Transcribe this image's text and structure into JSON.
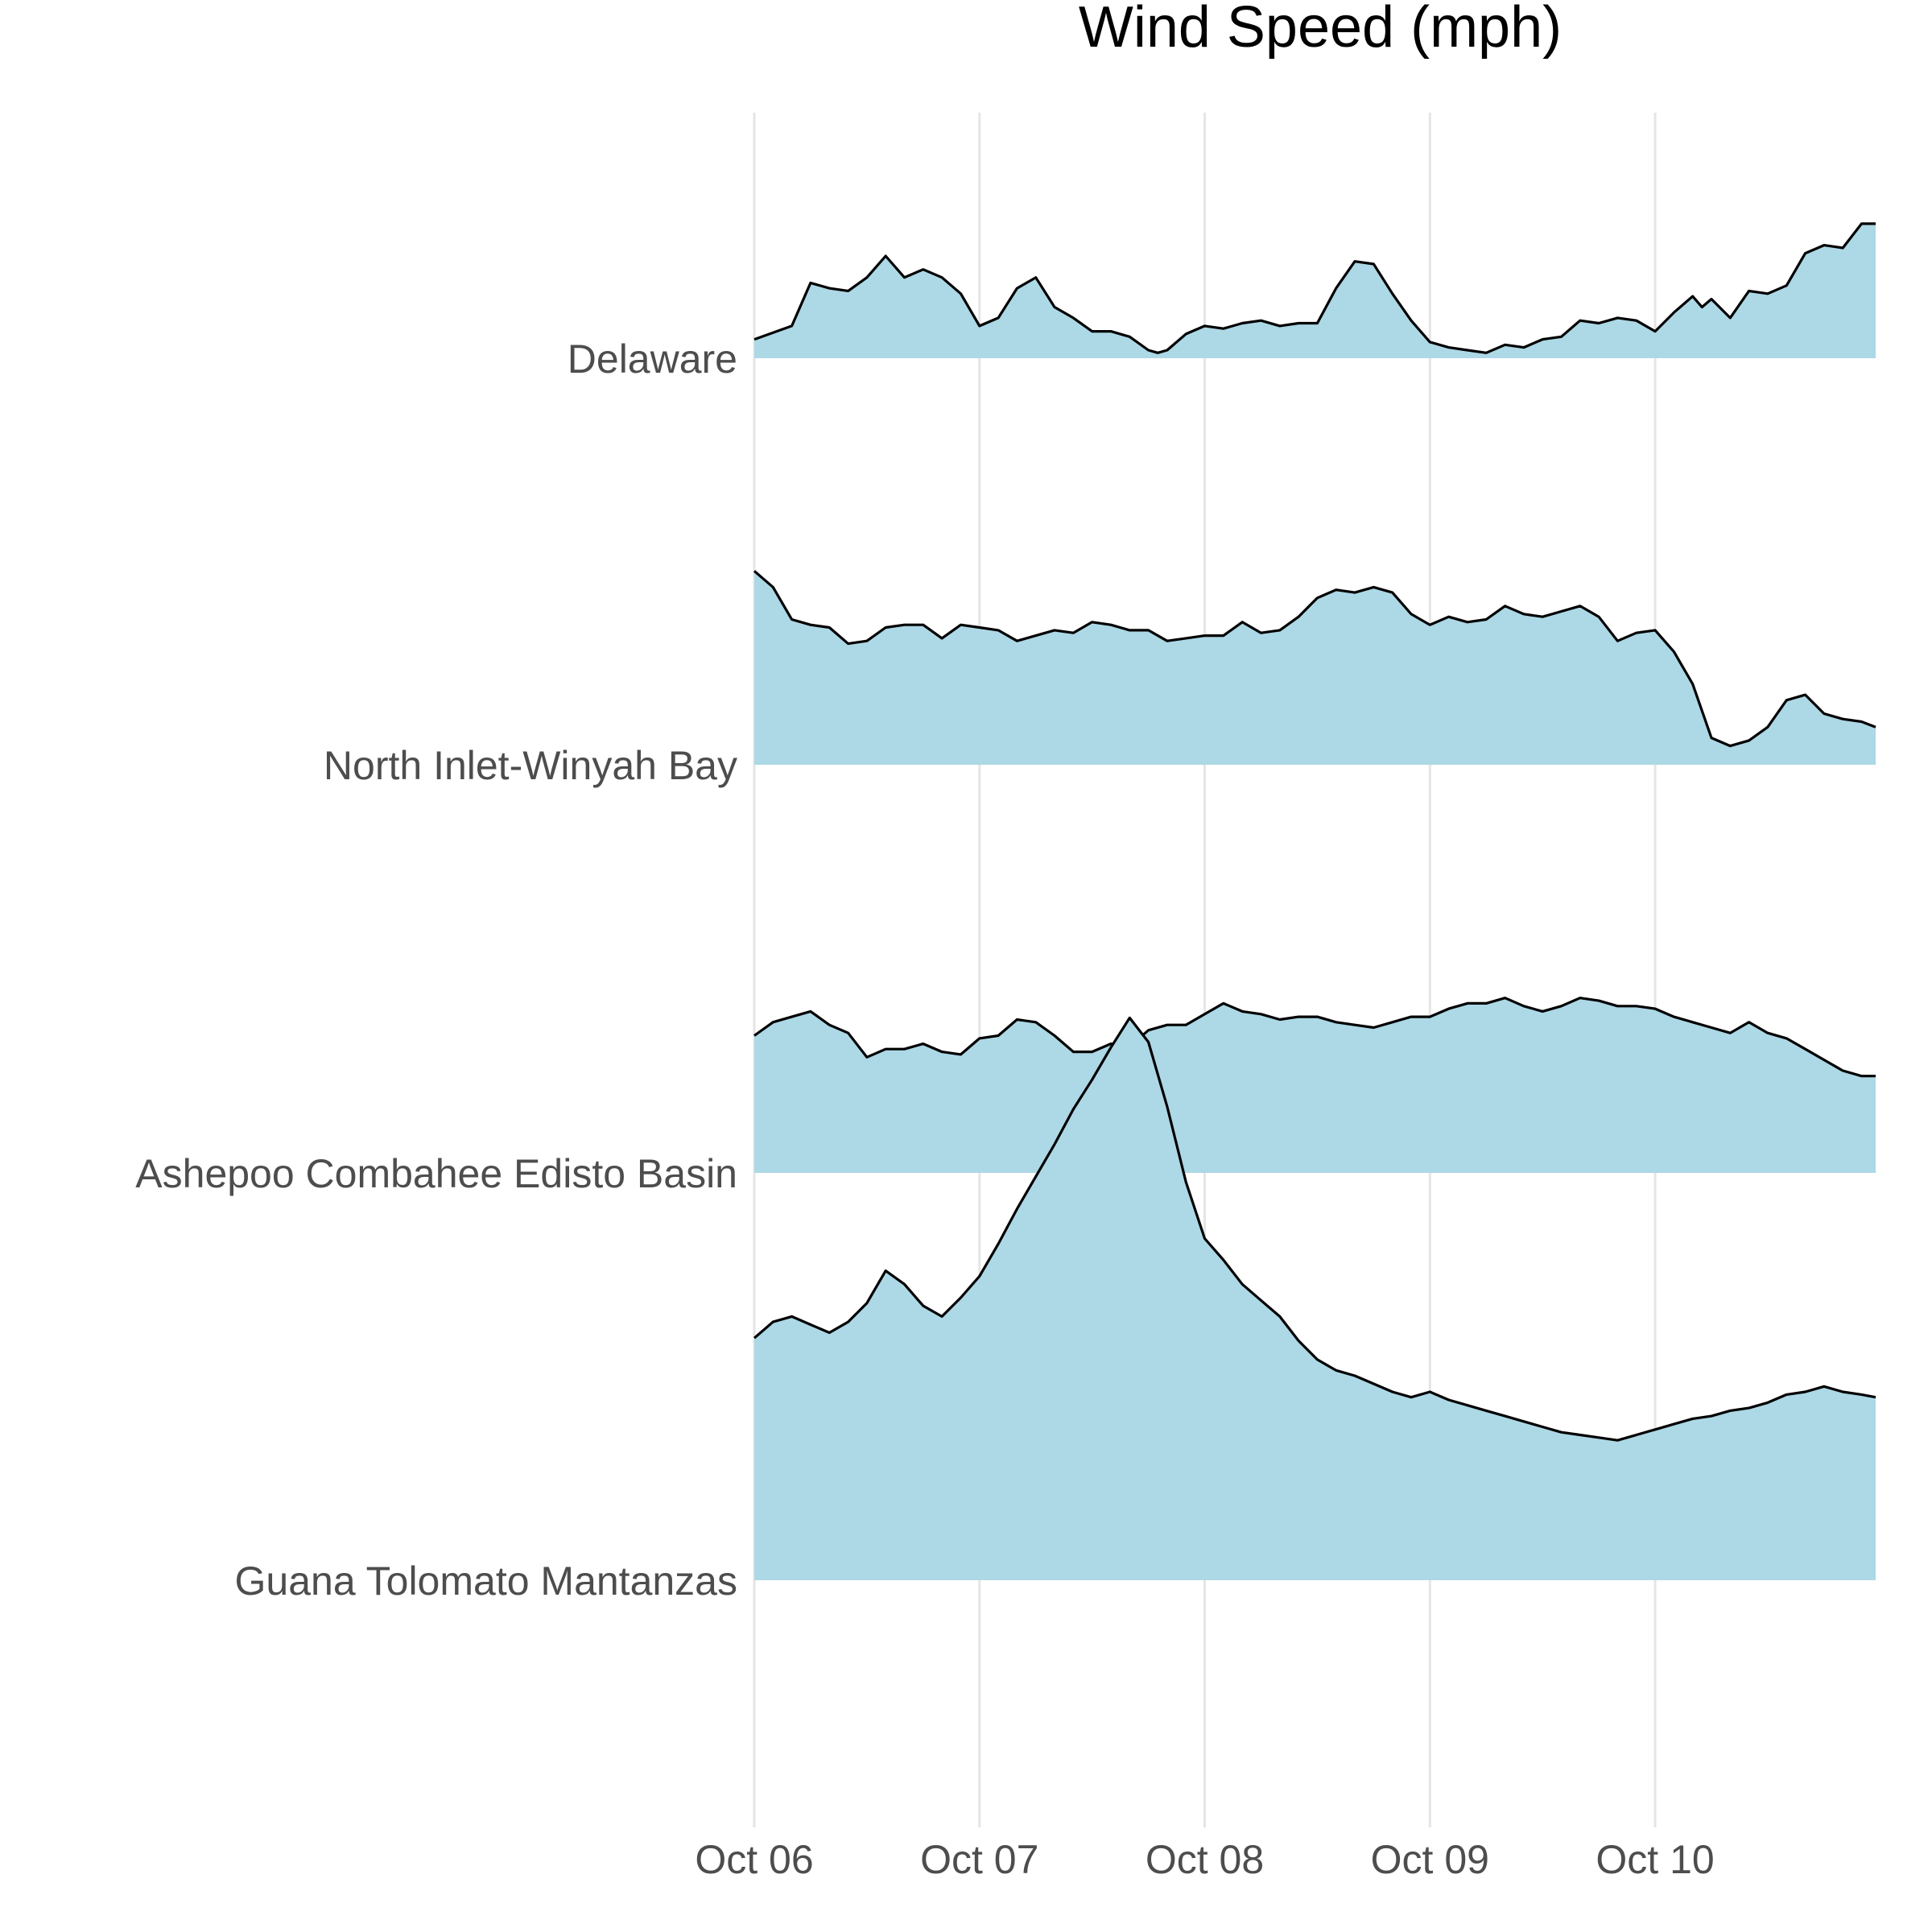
{
  "chart_data": {
    "type": "area",
    "title": "Wind Speed (mph)",
    "xlabel": "",
    "ylabel": "",
    "x_axis": {
      "unit": "datetime",
      "range": [
        "2018-10-06T00:00",
        "2018-10-10T23:30"
      ],
      "tick_labels": [
        "Oct 06",
        "Oct 07",
        "Oct 08",
        "Oct 09",
        "Oct 10"
      ]
    },
    "grid": {
      "vertical": true,
      "horizontal": false
    },
    "legend": "none",
    "fill_color": "#add8e6",
    "line_color": "#000000",
    "categories": [
      "Delaware",
      "North Inlet-Winyah Bay",
      "Ashepoo Combahee Edisto Basin",
      "Guana Tolomato Mantanzas"
    ],
    "series": [
      {
        "name": "Delaware",
        "points": [
          [
            "2018-10-06T00:00",
            0.7
          ],
          [
            "2018-10-06T04:00",
            1.2
          ],
          [
            "2018-10-06T06:00",
            2.8
          ],
          [
            "2018-10-06T08:00",
            2.6
          ],
          [
            "2018-10-06T10:00",
            2.5
          ],
          [
            "2018-10-06T12:00",
            3.0
          ],
          [
            "2018-10-06T14:00",
            3.8
          ],
          [
            "2018-10-06T16:00",
            3.0
          ],
          [
            "2018-10-06T18:00",
            3.3
          ],
          [
            "2018-10-06T20:00",
            3.0
          ],
          [
            "2018-10-06T22:00",
            2.4
          ],
          [
            "2018-10-07T00:00",
            1.2
          ],
          [
            "2018-10-07T02:00",
            1.5
          ],
          [
            "2018-10-07T04:00",
            2.6
          ],
          [
            "2018-10-07T06:00",
            3.0
          ],
          [
            "2018-10-07T08:00",
            1.9
          ],
          [
            "2018-10-07T10:00",
            1.5
          ],
          [
            "2018-10-07T12:00",
            1.0
          ],
          [
            "2018-10-07T14:00",
            1.0
          ],
          [
            "2018-10-07T16:00",
            0.8
          ],
          [
            "2018-10-07T18:00",
            0.3
          ],
          [
            "2018-10-07T19:00",
            0.2
          ],
          [
            "2018-10-07T20:00",
            0.3
          ],
          [
            "2018-10-07T22:00",
            0.9
          ],
          [
            "2018-10-08T00:00",
            1.2
          ],
          [
            "2018-10-08T02:00",
            1.1
          ],
          [
            "2018-10-08T04:00",
            1.3
          ],
          [
            "2018-10-08T06:00",
            1.4
          ],
          [
            "2018-10-08T08:00",
            1.2
          ],
          [
            "2018-10-08T10:00",
            1.3
          ],
          [
            "2018-10-08T12:00",
            1.3
          ],
          [
            "2018-10-08T14:00",
            2.6
          ],
          [
            "2018-10-08T16:00",
            3.6
          ],
          [
            "2018-10-08T18:00",
            3.5
          ],
          [
            "2018-10-08T20:00",
            2.4
          ],
          [
            "2018-10-08T22:00",
            1.4
          ],
          [
            "2018-10-09T00:00",
            0.6
          ],
          [
            "2018-10-09T02:00",
            0.4
          ],
          [
            "2018-10-09T04:00",
            0.3
          ],
          [
            "2018-10-09T06:00",
            0.2
          ],
          [
            "2018-10-09T08:00",
            0.5
          ],
          [
            "2018-10-09T10:00",
            0.4
          ],
          [
            "2018-10-09T12:00",
            0.7
          ],
          [
            "2018-10-09T14:00",
            0.8
          ],
          [
            "2018-10-09T16:00",
            1.4
          ],
          [
            "2018-10-09T18:00",
            1.3
          ],
          [
            "2018-10-09T20:00",
            1.5
          ],
          [
            "2018-10-09T22:00",
            1.4
          ],
          [
            "2018-10-10T00:00",
            1.0
          ],
          [
            "2018-10-10T02:00",
            1.7
          ],
          [
            "2018-10-10T04:00",
            2.3
          ],
          [
            "2018-10-10T05:00",
            1.9
          ],
          [
            "2018-10-10T06:00",
            2.2
          ],
          [
            "2018-10-10T08:00",
            1.5
          ],
          [
            "2018-10-10T10:00",
            2.5
          ],
          [
            "2018-10-10T12:00",
            2.4
          ],
          [
            "2018-10-10T14:00",
            2.7
          ],
          [
            "2018-10-10T16:00",
            3.9
          ],
          [
            "2018-10-10T18:00",
            4.2
          ],
          [
            "2018-10-10T20:00",
            4.1
          ],
          [
            "2018-10-10T22:00",
            5.0
          ],
          [
            "2018-10-10T23:30",
            5.0
          ]
        ]
      },
      {
        "name": "North Inlet-Winyah Bay",
        "points": [
          [
            "2018-10-06T00:00",
            7.2
          ],
          [
            "2018-10-06T02:00",
            6.6
          ],
          [
            "2018-10-06T04:00",
            5.4
          ],
          [
            "2018-10-06T06:00",
            5.2
          ],
          [
            "2018-10-06T08:00",
            5.1
          ],
          [
            "2018-10-06T10:00",
            4.5
          ],
          [
            "2018-10-06T12:00",
            4.6
          ],
          [
            "2018-10-06T14:00",
            5.1
          ],
          [
            "2018-10-06T16:00",
            5.2
          ],
          [
            "2018-10-06T18:00",
            5.2
          ],
          [
            "2018-10-06T20:00",
            4.7
          ],
          [
            "2018-10-06T22:00",
            5.2
          ],
          [
            "2018-10-07T00:00",
            5.1
          ],
          [
            "2018-10-07T02:00",
            5.0
          ],
          [
            "2018-10-07T04:00",
            4.6
          ],
          [
            "2018-10-07T06:00",
            4.8
          ],
          [
            "2018-10-07T08:00",
            5.0
          ],
          [
            "2018-10-07T10:00",
            4.9
          ],
          [
            "2018-10-07T12:00",
            5.3
          ],
          [
            "2018-10-07T14:00",
            5.2
          ],
          [
            "2018-10-07T16:00",
            5.0
          ],
          [
            "2018-10-07T18:00",
            5.0
          ],
          [
            "2018-10-07T20:00",
            4.6
          ],
          [
            "2018-10-07T22:00",
            4.7
          ],
          [
            "2018-10-08T00:00",
            4.8
          ],
          [
            "2018-10-08T02:00",
            4.8
          ],
          [
            "2018-10-08T04:00",
            5.3
          ],
          [
            "2018-10-08T06:00",
            4.9
          ],
          [
            "2018-10-08T08:00",
            5.0
          ],
          [
            "2018-10-08T10:00",
            5.5
          ],
          [
            "2018-10-08T12:00",
            6.2
          ],
          [
            "2018-10-08T14:00",
            6.5
          ],
          [
            "2018-10-08T16:00",
            6.4
          ],
          [
            "2018-10-08T18:00",
            6.6
          ],
          [
            "2018-10-08T20:00",
            6.4
          ],
          [
            "2018-10-08T22:00",
            5.6
          ],
          [
            "2018-10-09T00:00",
            5.2
          ],
          [
            "2018-10-09T02:00",
            5.5
          ],
          [
            "2018-10-09T04:00",
            5.3
          ],
          [
            "2018-10-09T06:00",
            5.4
          ],
          [
            "2018-10-09T08:00",
            5.9
          ],
          [
            "2018-10-09T10:00",
            5.6
          ],
          [
            "2018-10-09T12:00",
            5.5
          ],
          [
            "2018-10-09T14:00",
            5.7
          ],
          [
            "2018-10-09T16:00",
            5.9
          ],
          [
            "2018-10-09T18:00",
            5.5
          ],
          [
            "2018-10-09T20:00",
            4.6
          ],
          [
            "2018-10-09T22:00",
            4.9
          ],
          [
            "2018-10-10T00:00",
            5.0
          ],
          [
            "2018-10-10T02:00",
            4.2
          ],
          [
            "2018-10-10T04:00",
            3.0
          ],
          [
            "2018-10-10T06:00",
            1.0
          ],
          [
            "2018-10-10T08:00",
            0.7
          ],
          [
            "2018-10-10T10:00",
            0.9
          ],
          [
            "2018-10-10T12:00",
            1.4
          ],
          [
            "2018-10-10T14:00",
            2.4
          ],
          [
            "2018-10-10T16:00",
            2.6
          ],
          [
            "2018-10-10T18:00",
            1.9
          ],
          [
            "2018-10-10T20:00",
            1.7
          ],
          [
            "2018-10-10T22:00",
            1.6
          ],
          [
            "2018-10-10T23:30",
            1.4
          ]
        ]
      },
      {
        "name": "Ashepoo Combahee Edisto Basin",
        "points": [
          [
            "2018-10-06T00:00",
            5.1
          ],
          [
            "2018-10-06T02:00",
            5.6
          ],
          [
            "2018-10-06T04:00",
            5.8
          ],
          [
            "2018-10-06T06:00",
            6.0
          ],
          [
            "2018-10-06T08:00",
            5.5
          ],
          [
            "2018-10-06T10:00",
            5.2
          ],
          [
            "2018-10-06T12:00",
            4.3
          ],
          [
            "2018-10-06T14:00",
            4.6
          ],
          [
            "2018-10-06T16:00",
            4.6
          ],
          [
            "2018-10-06T18:00",
            4.8
          ],
          [
            "2018-10-06T20:00",
            4.5
          ],
          [
            "2018-10-06T22:00",
            4.4
          ],
          [
            "2018-10-07T00:00",
            5.0
          ],
          [
            "2018-10-07T02:00",
            5.1
          ],
          [
            "2018-10-07T04:00",
            5.7
          ],
          [
            "2018-10-07T06:00",
            5.6
          ],
          [
            "2018-10-07T08:00",
            5.1
          ],
          [
            "2018-10-07T10:00",
            4.5
          ],
          [
            "2018-10-07T12:00",
            4.5
          ],
          [
            "2018-10-07T14:00",
            4.8
          ],
          [
            "2018-10-07T16:00",
            4.7
          ],
          [
            "2018-10-07T18:00",
            5.3
          ],
          [
            "2018-10-07T20:00",
            5.5
          ],
          [
            "2018-10-07T22:00",
            5.5
          ],
          [
            "2018-10-08T00:00",
            5.9
          ],
          [
            "2018-10-08T02:00",
            6.3
          ],
          [
            "2018-10-08T04:00",
            6.0
          ],
          [
            "2018-10-08T06:00",
            5.9
          ],
          [
            "2018-10-08T08:00",
            5.7
          ],
          [
            "2018-10-08T10:00",
            5.8
          ],
          [
            "2018-10-08T12:00",
            5.8
          ],
          [
            "2018-10-08T14:00",
            5.6
          ],
          [
            "2018-10-08T16:00",
            5.5
          ],
          [
            "2018-10-08T18:00",
            5.4
          ],
          [
            "2018-10-08T20:00",
            5.6
          ],
          [
            "2018-10-08T22:00",
            5.8
          ],
          [
            "2018-10-09T00:00",
            5.8
          ],
          [
            "2018-10-09T02:00",
            6.1
          ],
          [
            "2018-10-09T04:00",
            6.3
          ],
          [
            "2018-10-09T06:00",
            6.3
          ],
          [
            "2018-10-09T08:00",
            6.5
          ],
          [
            "2018-10-09T10:00",
            6.2
          ],
          [
            "2018-10-09T12:00",
            6.0
          ],
          [
            "2018-10-09T14:00",
            6.2
          ],
          [
            "2018-10-09T16:00",
            6.5
          ],
          [
            "2018-10-09T18:00",
            6.4
          ],
          [
            "2018-10-09T20:00",
            6.2
          ],
          [
            "2018-10-09T22:00",
            6.2
          ],
          [
            "2018-10-10T00:00",
            6.1
          ],
          [
            "2018-10-10T02:00",
            5.8
          ],
          [
            "2018-10-10T04:00",
            5.6
          ],
          [
            "2018-10-10T06:00",
            5.4
          ],
          [
            "2018-10-10T08:00",
            5.2
          ],
          [
            "2018-10-10T10:00",
            5.6
          ],
          [
            "2018-10-10T12:00",
            5.2
          ],
          [
            "2018-10-10T14:00",
            5.0
          ],
          [
            "2018-10-10T16:00",
            4.6
          ],
          [
            "2018-10-10T18:00",
            4.2
          ],
          [
            "2018-10-10T20:00",
            3.8
          ],
          [
            "2018-10-10T22:00",
            3.6
          ],
          [
            "2018-10-10T23:30",
            3.6
          ]
        ]
      },
      {
        "name": "Guana Tolomato Mantanzas",
        "points": [
          [
            "2018-10-06T00:00",
            9.0
          ],
          [
            "2018-10-06T02:00",
            9.6
          ],
          [
            "2018-10-06T04:00",
            9.8
          ],
          [
            "2018-10-06T06:00",
            9.5
          ],
          [
            "2018-10-06T08:00",
            9.2
          ],
          [
            "2018-10-06T10:00",
            9.6
          ],
          [
            "2018-10-06T12:00",
            10.3
          ],
          [
            "2018-10-06T14:00",
            11.5
          ],
          [
            "2018-10-06T16:00",
            11.0
          ],
          [
            "2018-10-06T18:00",
            10.2
          ],
          [
            "2018-10-06T20:00",
            9.8
          ],
          [
            "2018-10-06T22:00",
            10.5
          ],
          [
            "2018-10-07T00:00",
            11.3
          ],
          [
            "2018-10-07T02:00",
            12.5
          ],
          [
            "2018-10-07T04:00",
            13.8
          ],
          [
            "2018-10-07T06:00",
            15.0
          ],
          [
            "2018-10-07T08:00",
            16.2
          ],
          [
            "2018-10-07T10:00",
            17.5
          ],
          [
            "2018-10-07T12:00",
            18.6
          ],
          [
            "2018-10-07T14:00",
            19.8
          ],
          [
            "2018-10-07T16:00",
            20.9
          ],
          [
            "2018-10-07T18:00",
            20.0
          ],
          [
            "2018-10-07T20:00",
            17.6
          ],
          [
            "2018-10-07T22:00",
            14.8
          ],
          [
            "2018-10-08T00:00",
            12.7
          ],
          [
            "2018-10-08T02:00",
            11.9
          ],
          [
            "2018-10-08T04:00",
            11.0
          ],
          [
            "2018-10-08T06:00",
            10.4
          ],
          [
            "2018-10-08T08:00",
            9.8
          ],
          [
            "2018-10-08T10:00",
            8.9
          ],
          [
            "2018-10-08T12:00",
            8.2
          ],
          [
            "2018-10-08T14:00",
            7.8
          ],
          [
            "2018-10-08T16:00",
            7.6
          ],
          [
            "2018-10-08T18:00",
            7.3
          ],
          [
            "2018-10-08T20:00",
            7.0
          ],
          [
            "2018-10-08T22:00",
            6.8
          ],
          [
            "2018-10-09T00:00",
            7.0
          ],
          [
            "2018-10-09T02:00",
            6.7
          ],
          [
            "2018-10-09T04:00",
            6.5
          ],
          [
            "2018-10-09T06:00",
            6.3
          ],
          [
            "2018-10-09T08:00",
            6.1
          ],
          [
            "2018-10-09T10:00",
            5.9
          ],
          [
            "2018-10-09T12:00",
            5.7
          ],
          [
            "2018-10-09T14:00",
            5.5
          ],
          [
            "2018-10-09T16:00",
            5.4
          ],
          [
            "2018-10-09T18:00",
            5.3
          ],
          [
            "2018-10-09T20:00",
            5.2
          ],
          [
            "2018-10-09T22:00",
            5.4
          ],
          [
            "2018-10-10T00:00",
            5.6
          ],
          [
            "2018-10-10T02:00",
            5.8
          ],
          [
            "2018-10-10T04:00",
            6.0
          ],
          [
            "2018-10-10T06:00",
            6.1
          ],
          [
            "2018-10-10T08:00",
            6.3
          ],
          [
            "2018-10-10T10:00",
            6.4
          ],
          [
            "2018-10-10T12:00",
            6.6
          ],
          [
            "2018-10-10T14:00",
            6.9
          ],
          [
            "2018-10-10T16:00",
            7.0
          ],
          [
            "2018-10-10T18:00",
            7.2
          ],
          [
            "2018-10-10T20:00",
            7.0
          ],
          [
            "2018-10-10T22:00",
            6.9
          ],
          [
            "2018-10-10T23:30",
            6.8
          ]
        ]
      }
    ]
  }
}
